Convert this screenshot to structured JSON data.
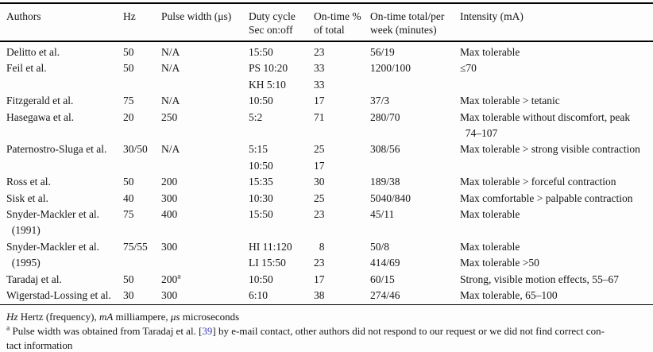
{
  "colors": {
    "citation_link": "#4040c0",
    "rule": "#000000",
    "text": "#161616",
    "background": "#fdfdfd"
  },
  "table": {
    "column_keys": [
      "authors",
      "hz",
      "pulse_width",
      "duty_cycle",
      "on_time_pct",
      "on_time_total",
      "intensity"
    ],
    "columns": [
      {
        "key": "authors",
        "label_lines": [
          "Authors"
        ]
      },
      {
        "key": "hz",
        "label_lines": [
          "Hz"
        ]
      },
      {
        "key": "pulse_width",
        "label_lines": [
          "Pulse width (μs)"
        ]
      },
      {
        "key": "duty_cycle",
        "label_lines": [
          "Duty cycle",
          "Sec on:off"
        ]
      },
      {
        "key": "on_time_pct",
        "label_lines": [
          "On-time %",
          "of total"
        ]
      },
      {
        "key": "on_time_total",
        "label_lines": [
          "On-time total/per",
          "week (minutes)"
        ]
      },
      {
        "key": "intensity",
        "label_lines": [
          "Intensity (mA)"
        ]
      }
    ],
    "rows": [
      {
        "authors": [
          "Delitto et al."
        ],
        "hz": [
          "50"
        ],
        "pulse_width": [
          "N/A"
        ],
        "duty_cycle": [
          "15:50"
        ],
        "on_time_pct": [
          "23"
        ],
        "on_time_total": [
          "56/19"
        ],
        "intensity": [
          "Max tolerable"
        ]
      },
      {
        "authors": [
          "Feil et al."
        ],
        "hz": [
          "50"
        ],
        "pulse_width": [
          "N/A"
        ],
        "duty_cycle": [
          "PS 10:20",
          "KH 5:10"
        ],
        "on_time_pct": [
          "33",
          "33"
        ],
        "on_time_total": [
          "1200/100"
        ],
        "intensity": [
          "≤70"
        ]
      },
      {
        "authors": [
          "Fitzgerald et al."
        ],
        "hz": [
          "75"
        ],
        "pulse_width": [
          "N/A"
        ],
        "duty_cycle": [
          "10:50"
        ],
        "on_time_pct": [
          "17"
        ],
        "on_time_total": [
          "37/3"
        ],
        "intensity": [
          "Max tolerable > tetanic"
        ]
      },
      {
        "authors": [
          "Hasegawa et al."
        ],
        "hz": [
          "20"
        ],
        "pulse_width": [
          "250"
        ],
        "duty_cycle": [
          "5:2"
        ],
        "on_time_pct": [
          "71"
        ],
        "on_time_total": [
          "280/70"
        ],
        "intensity": [
          "Max tolerable without discomfort, peak",
          "  74–107"
        ]
      },
      {
        "authors": [
          "Paternostro-Sluga et al."
        ],
        "hz": [
          "30/50"
        ],
        "pulse_width": [
          "N/A"
        ],
        "duty_cycle": [
          "5:15",
          "10:50"
        ],
        "on_time_pct": [
          "25",
          "17"
        ],
        "on_time_total": [
          "308/56"
        ],
        "intensity": [
          "Max tolerable > strong visible contraction"
        ]
      },
      {
        "authors": [
          "Ross et al."
        ],
        "hz": [
          "50"
        ],
        "pulse_width": [
          "200"
        ],
        "duty_cycle": [
          "15:35"
        ],
        "on_time_pct": [
          "30"
        ],
        "on_time_total": [
          "189/38"
        ],
        "intensity": [
          "Max tolerable > forceful contraction"
        ]
      },
      {
        "authors": [
          "Sisk et al."
        ],
        "hz": [
          "40"
        ],
        "pulse_width": [
          "300"
        ],
        "duty_cycle": [
          "10:30"
        ],
        "on_time_pct": [
          "25"
        ],
        "on_time_total": [
          "5040/840"
        ],
        "intensity": [
          "Max comfortable > palpable contraction"
        ]
      },
      {
        "authors": [
          "Snyder-Mackler et al.",
          "  (1991)"
        ],
        "hz": [
          "75"
        ],
        "pulse_width": [
          "400"
        ],
        "duty_cycle": [
          "15:50"
        ],
        "on_time_pct": [
          "23"
        ],
        "on_time_total": [
          "45/11"
        ],
        "intensity": [
          "Max tolerable"
        ]
      },
      {
        "authors": [
          "Snyder-Mackler et al.",
          "  (1995)"
        ],
        "hz": [
          "75/55"
        ],
        "pulse_width": [
          "300"
        ],
        "duty_cycle": [
          "HI 11:120",
          "LI 15:50"
        ],
        "on_time_pct": [
          "  8",
          "23"
        ],
        "on_time_total": [
          "50/8",
          "414/69"
        ],
        "intensity": [
          "Max tolerable",
          "Max tolerable >50"
        ]
      },
      {
        "authors": [
          "Taradaj et al."
        ],
        "hz": [
          "50"
        ],
        "pulse_width": [
          "200^{a}"
        ],
        "duty_cycle": [
          "10:50"
        ],
        "on_time_pct": [
          "17"
        ],
        "on_time_total": [
          "60/15"
        ],
        "intensity": [
          "Strong, visible motion effects, 55–67"
        ]
      },
      {
        "authors": [
          "Wigerstad-Lossing et al."
        ],
        "hz": [
          "30"
        ],
        "pulse_width": [
          "300"
        ],
        "duty_cycle": [
          "6:10"
        ],
        "on_time_pct": [
          "38"
        ],
        "on_time_total": [
          "274/46"
        ],
        "intensity": [
          "Max tolerable, 65–100"
        ]
      }
    ]
  },
  "footnotes": {
    "abbrev": {
      "seg1": "Hz",
      "seg2": " Hertz (frequency), ",
      "seg3": "mA",
      "seg4": " milliampere, ",
      "seg5": "μs",
      "seg6": " microseconds"
    },
    "pulse": {
      "marker": "a",
      "before_link": " Pulse width was obtained from Taradaj et al. [",
      "link": "39",
      "after_link": "] by e-mail contact, other authors did not respond to our request or we did not find correct con-",
      "line2": "tact information"
    }
  }
}
